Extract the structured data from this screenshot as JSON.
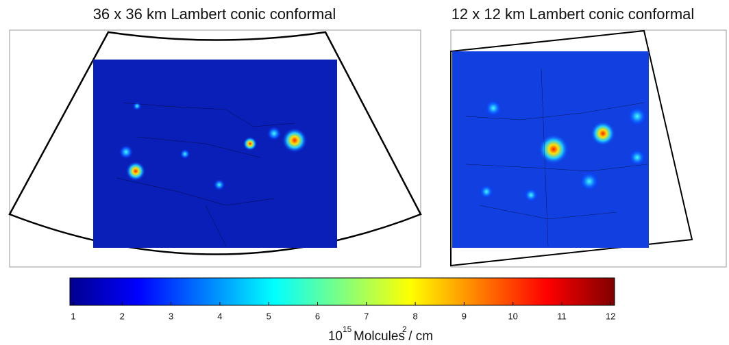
{
  "panels": [
    {
      "title": "36 x 36 km Lambert conic conformal"
    },
    {
      "title": "12 x 12 km Lambert conic conformal"
    }
  ],
  "colorbar": {
    "colormap": "jet",
    "clim": [
      0.93,
      12.08
    ],
    "ticks": [
      1,
      2,
      3,
      4,
      5,
      6,
      7,
      8,
      9,
      10,
      11,
      12
    ],
    "label": {
      "base": "10",
      "exponent": "15",
      "unit": " Molcules / cm",
      "unit_exponent": "2"
    }
  }
}
